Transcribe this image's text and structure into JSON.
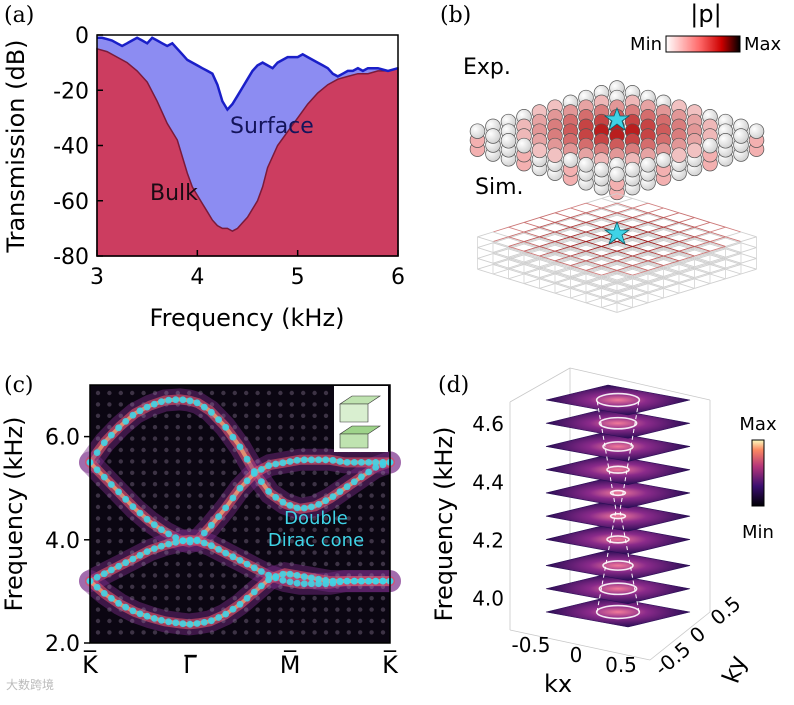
{
  "panels": {
    "a": {
      "label": "(a)"
    },
    "b": {
      "label": "(b)"
    },
    "c": {
      "label": "(c)"
    },
    "d": {
      "label": "(d)"
    }
  },
  "colors": {
    "bulk": "#cc3d60",
    "surface": "#8c8cf2",
    "surface_line": "#1a1fc8",
    "cyan": "#3fd3e6"
  },
  "chart_data": [
    {
      "type": "area",
      "panel": "a",
      "xlabel": "Frequency (kHz)",
      "ylabel": "Transmission (dB)",
      "xlim": [
        3,
        6
      ],
      "ylim": [
        -80,
        0
      ],
      "xticks": [
        "3",
        "4",
        "5",
        "6"
      ],
      "yticks": [
        "0",
        "-20",
        "-40",
        "-60",
        "-80"
      ],
      "annotations": {
        "surface": "Surface",
        "bulk": "Bulk"
      },
      "series": [
        {
          "name": "Surface",
          "x": [
            3.0,
            3.05,
            3.1,
            3.15,
            3.2,
            3.25,
            3.3,
            3.35,
            3.4,
            3.45,
            3.5,
            3.55,
            3.6,
            3.65,
            3.7,
            3.75,
            3.8,
            3.85,
            3.9,
            3.95,
            4.0,
            4.05,
            4.1,
            4.15,
            4.2,
            4.25,
            4.3,
            4.35,
            4.4,
            4.45,
            4.5,
            4.55,
            4.6,
            4.65,
            4.7,
            4.75,
            4.8,
            4.85,
            4.9,
            4.95,
            5.0,
            5.05,
            5.1,
            5.15,
            5.2,
            5.25,
            5.3,
            5.35,
            5.4,
            5.45,
            5.5,
            5.55,
            5.6,
            5.65,
            5.7,
            5.8,
            5.9,
            6.0
          ],
          "values": [
            -1,
            -1,
            -1.5,
            -2,
            -3,
            -4,
            -3,
            -2,
            -1,
            -2,
            -3,
            -1,
            -2,
            -3,
            -4,
            -3,
            -5,
            -7,
            -9,
            -10,
            -11,
            -12,
            -13,
            -14,
            -18,
            -24,
            -27,
            -25,
            -22,
            -19,
            -16,
            -13,
            -11,
            -10,
            -11,
            -12,
            -10,
            -9,
            -8,
            -8,
            -8,
            -7,
            -8,
            -9,
            -10,
            -11,
            -12,
            -14,
            -15,
            -14,
            -13,
            -13,
            -12,
            -13,
            -12,
            -12,
            -13,
            -12
          ]
        },
        {
          "name": "Bulk",
          "x": [
            3.0,
            3.1,
            3.2,
            3.3,
            3.4,
            3.5,
            3.6,
            3.7,
            3.8,
            3.85,
            3.9,
            3.95,
            4.0,
            4.05,
            4.1,
            4.15,
            4.2,
            4.25,
            4.3,
            4.35,
            4.4,
            4.45,
            4.5,
            4.55,
            4.6,
            4.65,
            4.7,
            4.8,
            4.9,
            5.0,
            5.1,
            5.2,
            5.3,
            5.4,
            5.5,
            5.6,
            5.7,
            5.8,
            5.9,
            6.0
          ],
          "values": [
            -5,
            -6,
            -8,
            -10,
            -13,
            -17,
            -24,
            -32,
            -38,
            -44,
            -50,
            -55,
            -58,
            -61,
            -64,
            -67,
            -69,
            -70,
            -70,
            -71,
            -70,
            -68,
            -66,
            -63,
            -60,
            -55,
            -48,
            -40,
            -35,
            -30,
            -25,
            -21,
            -18,
            -16,
            -15,
            -14,
            -14,
            -13,
            -13,
            -12
          ]
        }
      ]
    },
    {
      "type": "heatmap",
      "panel": "b",
      "title": "|p|",
      "colorbar": {
        "min_label": "Min",
        "max_label": "Max"
      },
      "labels": {
        "exp": "Exp.",
        "sim": "Sim."
      },
      "grid": [
        10,
        10
      ]
    },
    {
      "type": "heatmap",
      "panel": "c",
      "ylabel": "Frequency (kHz)",
      "ylim": [
        2.0,
        7.0
      ],
      "yticks": [
        "2.0",
        "4.0",
        "6.0"
      ],
      "xticks": [
        "K̅",
        "Γ̅",
        "M̅",
        "K̅"
      ],
      "annotation": "Double Dirac cone",
      "series": [
        {
          "name": "upper band",
          "x": [
            0,
            0.05,
            0.1,
            0.15,
            0.2,
            0.25,
            0.3,
            0.33,
            0.36,
            0.4,
            0.45,
            0.5,
            0.55,
            0.6,
            0.65,
            0.7,
            0.75,
            0.8,
            0.85,
            0.9,
            0.95,
            1.0
          ],
          "values": [
            5.5,
            5.9,
            6.2,
            6.45,
            6.6,
            6.7,
            6.72,
            6.7,
            6.65,
            6.5,
            6.2,
            5.8,
            5.3,
            4.9,
            4.7,
            4.6,
            4.65,
            4.8,
            5.0,
            5.2,
            5.4,
            5.5
          ]
        },
        {
          "name": "cone up",
          "x": [
            0,
            0.05,
            0.1,
            0.15,
            0.2,
            0.25,
            0.3,
            0.33,
            0.36,
            0.4,
            0.45,
            0.5,
            0.55,
            0.6,
            0.65,
            0.7,
            0.75,
            0.8,
            0.85,
            0.9,
            0.95,
            1.0
          ],
          "values": [
            5.5,
            5.2,
            4.9,
            4.6,
            4.35,
            4.15,
            4.0,
            3.95,
            4.0,
            4.25,
            4.6,
            5.0,
            5.3,
            5.45,
            5.5,
            5.55,
            5.55,
            5.55,
            5.5,
            5.5,
            5.5,
            5.5
          ]
        },
        {
          "name": "cone down",
          "x": [
            0,
            0.05,
            0.1,
            0.15,
            0.2,
            0.25,
            0.3,
            0.33,
            0.36,
            0.4,
            0.45,
            0.5,
            0.55,
            0.6,
            0.65,
            0.7,
            0.75,
            0.8,
            0.85,
            0.9,
            0.95,
            1.0
          ],
          "values": [
            3.2,
            3.35,
            3.5,
            3.65,
            3.8,
            3.9,
            3.97,
            4.0,
            3.98,
            3.9,
            3.75,
            3.6,
            3.45,
            3.3,
            3.2,
            3.15,
            3.15,
            3.15,
            3.2,
            3.2,
            3.2,
            3.2
          ]
        },
        {
          "name": "lower band",
          "x": [
            0,
            0.05,
            0.1,
            0.15,
            0.2,
            0.25,
            0.3,
            0.33,
            0.36,
            0.4,
            0.45,
            0.5,
            0.55,
            0.6,
            0.65,
            0.7,
            0.75,
            0.8,
            0.85,
            0.9,
            0.95,
            1.0
          ],
          "values": [
            3.2,
            2.95,
            2.75,
            2.6,
            2.5,
            2.42,
            2.38,
            2.36,
            2.38,
            2.42,
            2.55,
            2.75,
            3.0,
            3.25,
            3.35,
            3.3,
            3.25,
            3.2,
            3.2,
            3.2,
            3.2,
            3.2
          ]
        }
      ]
    },
    {
      "type": "heatmap",
      "panel": "d",
      "zlabel": "Frequency (kHz)",
      "zticks": [
        "4.0",
        "4.2",
        "4.4",
        "4.6"
      ],
      "xlabel": "kx",
      "ylabel": "ky",
      "xticks": [
        "-0.5",
        "0",
        "0.5"
      ],
      "yticks": [
        "-0.5",
        "0",
        "0.5"
      ],
      "colorbar": {
        "max_label": "Max",
        "min_label": "Min"
      },
      "slices_freq": [
        3.95,
        4.03,
        4.11,
        4.2,
        4.28,
        4.36,
        4.44,
        4.52,
        4.6,
        4.68
      ],
      "ring_radius": [
        0.55,
        0.45,
        0.32,
        0.18,
        0.05,
        0.05,
        0.18,
        0.32,
        0.45,
        0.55
      ]
    }
  ],
  "watermark": "大数跨境"
}
